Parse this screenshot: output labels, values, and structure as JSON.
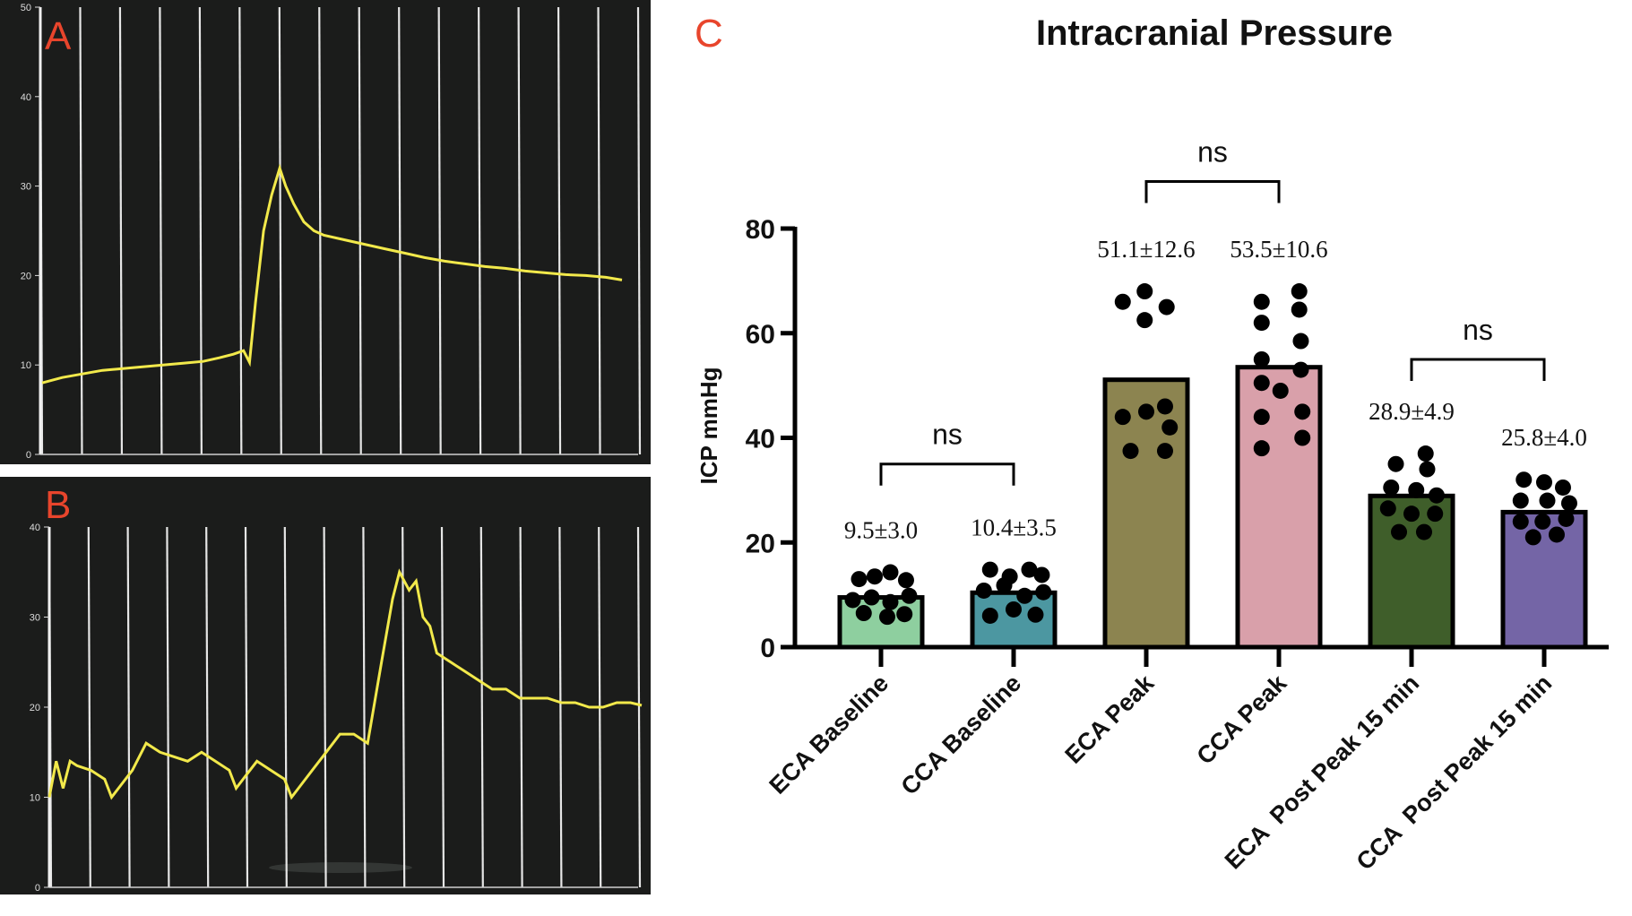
{
  "panels": {
    "a": {
      "letter": "A"
    },
    "b": {
      "letter": "B"
    },
    "c": {
      "letter": "C"
    }
  },
  "monitor_a": {
    "ymax": 50,
    "yticks": [
      "0",
      "10",
      "20",
      "30",
      "40",
      "50"
    ],
    "trace_color": "#f2e94b",
    "trace": [
      [
        0,
        8
      ],
      [
        0.5,
        8.3
      ],
      [
        1,
        8.6
      ],
      [
        2,
        9
      ],
      [
        3,
        9.4
      ],
      [
        4,
        9.6
      ],
      [
        5,
        9.8
      ],
      [
        6,
        10
      ],
      [
        7,
        10.2
      ],
      [
        8,
        10.4
      ],
      [
        8.8,
        10.8
      ],
      [
        9.5,
        11.2
      ],
      [
        10,
        11.6
      ],
      [
        10.3,
        10.3
      ],
      [
        10.6,
        17
      ],
      [
        11,
        25
      ],
      [
        11.4,
        29
      ],
      [
        11.8,
        32
      ],
      [
        12.1,
        30
      ],
      [
        12.5,
        28
      ],
      [
        13,
        26
      ],
      [
        13.5,
        25
      ],
      [
        14,
        24.5
      ],
      [
        15,
        24
      ],
      [
        16,
        23.5
      ],
      [
        17,
        23
      ],
      [
        18,
        22.5
      ],
      [
        19,
        22
      ],
      [
        20,
        21.6
      ],
      [
        21,
        21.3
      ],
      [
        22,
        21
      ],
      [
        23,
        20.8
      ],
      [
        24,
        20.5
      ],
      [
        25,
        20.3
      ],
      [
        26,
        20.1
      ],
      [
        27,
        20
      ],
      [
        28,
        19.8
      ],
      [
        28.8,
        19.5
      ]
    ]
  },
  "monitor_b": {
    "ymax": 40,
    "yticks": [
      "0",
      "10",
      "20",
      "30",
      "40"
    ],
    "trace_color": "#f2e94b",
    "trace": [
      [
        0,
        10
      ],
      [
        0.5,
        14
      ],
      [
        1,
        11
      ],
      [
        1.5,
        14
      ],
      [
        2,
        13.5
      ],
      [
        3,
        13
      ],
      [
        4,
        12
      ],
      [
        4.5,
        10
      ],
      [
        5,
        11
      ],
      [
        6,
        13
      ],
      [
        7,
        16
      ],
      [
        8,
        15
      ],
      [
        9,
        14.5
      ],
      [
        10,
        14
      ],
      [
        11,
        15
      ],
      [
        12,
        14
      ],
      [
        13,
        13
      ],
      [
        13.5,
        11
      ],
      [
        14,
        12
      ],
      [
        15,
        14
      ],
      [
        16,
        13
      ],
      [
        17,
        12
      ],
      [
        17.5,
        10
      ],
      [
        18,
        11
      ],
      [
        19,
        13
      ],
      [
        20,
        15
      ],
      [
        21,
        17
      ],
      [
        22,
        17
      ],
      [
        23,
        16
      ],
      [
        24,
        25
      ],
      [
        24.8,
        32
      ],
      [
        25.3,
        35
      ],
      [
        26,
        33
      ],
      [
        26.5,
        34
      ],
      [
        27,
        30
      ],
      [
        27.5,
        29
      ],
      [
        28,
        26
      ],
      [
        29,
        25
      ],
      [
        30,
        24
      ],
      [
        31,
        23
      ],
      [
        32,
        22
      ],
      [
        33,
        22
      ],
      [
        34,
        21
      ],
      [
        35,
        21
      ],
      [
        36,
        21
      ],
      [
        37,
        20.5
      ],
      [
        38,
        20.5
      ],
      [
        39,
        20
      ],
      [
        40,
        20
      ],
      [
        41,
        20.5
      ],
      [
        42,
        20.5
      ],
      [
        42.8,
        20.2
      ]
    ]
  },
  "chart_data": {
    "type": "bar",
    "title": "Intracranial Pressure",
    "ylabel": "ICP mmHg",
    "xlabel": "",
    "ylim": [
      0,
      80
    ],
    "yticks": [
      0,
      20,
      40,
      60,
      80
    ],
    "ytick_labels": [
      "0",
      "20",
      "40",
      "60",
      "80"
    ],
    "categories": [
      "ECA Baseline",
      "CCA Baseline",
      "ECA Peak",
      "CCA Peak",
      "ECA  Post Peak 15 min",
      "CCA  Post Peak 15 min"
    ],
    "values": [
      9.5,
      10.4,
      51.1,
      53.5,
      28.9,
      25.8
    ],
    "labels": [
      "9.5±3.0",
      "10.4±3.5",
      "51.1±12.6",
      "53.5±10.6",
      "28.9±4.9",
      "25.8±4.0"
    ],
    "colors": [
      "#8ecf9f",
      "#4c97a1",
      "#8c8450",
      "#d9a0aa",
      "#3f5e2a",
      "#7465a6"
    ],
    "points": [
      [
        [
          -0.28,
          13
        ],
        [
          -0.08,
          13.5
        ],
        [
          0.12,
          14.3
        ],
        [
          0.32,
          12.8
        ],
        [
          -0.36,
          9
        ],
        [
          -0.12,
          9.5
        ],
        [
          0.12,
          8.6
        ],
        [
          0.36,
          9.8
        ],
        [
          -0.22,
          6.5
        ],
        [
          0.08,
          5.8
        ],
        [
          0.3,
          6.3
        ]
      ],
      [
        [
          -0.3,
          14.8
        ],
        [
          -0.05,
          13.5
        ],
        [
          0.2,
          14.8
        ],
        [
          0.36,
          13.8
        ],
        [
          -0.38,
          10.8
        ],
        [
          -0.12,
          11.8
        ],
        [
          0.14,
          9.8
        ],
        [
          0.38,
          10.5
        ],
        [
          -0.3,
          6
        ],
        [
          0,
          7.2
        ],
        [
          0.28,
          6.2
        ]
      ],
      [
        [
          -0.3,
          66
        ],
        [
          -0.02,
          68
        ],
        [
          0.26,
          65
        ],
        [
          -0.02,
          62.5
        ],
        [
          0.24,
          46
        ],
        [
          -0.3,
          44
        ],
        [
          0,
          45
        ],
        [
          0.3,
          42
        ],
        [
          -0.2,
          37.5
        ],
        [
          0.24,
          37.5
        ]
      ],
      [
        [
          0.26,
          68
        ],
        [
          -0.22,
          66
        ],
        [
          0.26,
          64.5
        ],
        [
          -0.22,
          62
        ],
        [
          0.28,
          58.5
        ],
        [
          -0.22,
          55
        ],
        [
          0.28,
          53
        ],
        [
          -0.22,
          50.5
        ],
        [
          0.02,
          49
        ],
        [
          0.3,
          45
        ],
        [
          -0.22,
          44
        ],
        [
          0.3,
          40
        ],
        [
          -0.22,
          38
        ]
      ],
      [
        [
          0.18,
          37
        ],
        [
          -0.2,
          35
        ],
        [
          0.2,
          34
        ],
        [
          -0.26,
          30.5
        ],
        [
          0.06,
          30
        ],
        [
          0.32,
          29
        ],
        [
          -0.3,
          26.5
        ],
        [
          0,
          25.5
        ],
        [
          0.3,
          25.5
        ],
        [
          -0.16,
          22
        ],
        [
          0.16,
          22
        ]
      ],
      [
        [
          -0.26,
          32
        ],
        [
          0,
          31.5
        ],
        [
          0.24,
          30.5
        ],
        [
          -0.3,
          28
        ],
        [
          0.04,
          28
        ],
        [
          0.32,
          27.5
        ],
        [
          -0.3,
          24
        ],
        [
          -0.02,
          24
        ],
        [
          0.28,
          24.5
        ],
        [
          -0.14,
          21
        ],
        [
          0.16,
          21.5
        ]
      ]
    ],
    "comparisons": [
      {
        "pair": [
          0,
          1
        ],
        "label": "ns",
        "y": 35
      },
      {
        "pair": [
          2,
          3
        ],
        "label": "ns",
        "y": 89
      },
      {
        "pair": [
          4,
          5
        ],
        "label": "ns",
        "y": 55
      }
    ]
  }
}
